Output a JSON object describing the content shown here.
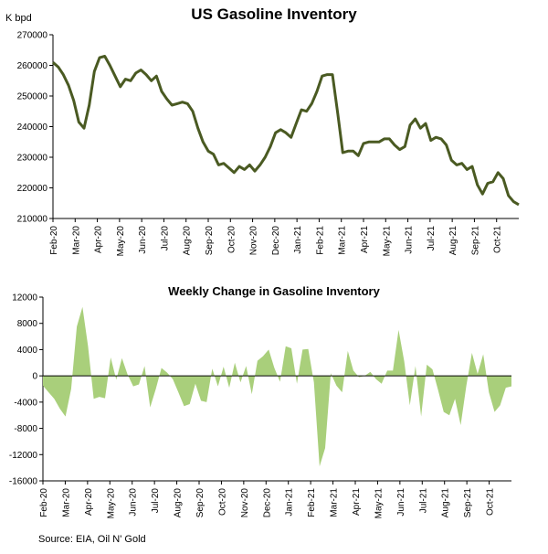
{
  "source_text": "Source: EIA, Oil N' Gold",
  "chart_data": [
    {
      "type": "line",
      "title": "US Gasoline Inventory",
      "ylabel": "K bpd",
      "xlabel": "",
      "ylim": [
        210000,
        270000
      ],
      "yticks": [
        210000,
        220000,
        230000,
        240000,
        250000,
        260000,
        270000
      ],
      "months": [
        "Feb-20",
        "Mar-20",
        "Apr-20",
        "May-20",
        "Jun-20",
        "Jul-20",
        "Aug-20",
        "Sep-20",
        "Oct-20",
        "Nov-20",
        "Dec-20",
        "Jan-21",
        "Feb-21",
        "Mar-21",
        "Apr-21",
        "May-21",
        "Jun-21",
        "Jul-21",
        "Aug-21",
        "Sep-21",
        "Oct-21"
      ],
      "series": [
        {
          "name": "US Gasoline Inventory",
          "color": "#4a5a22",
          "values": [
            261000,
            259500,
            257000,
            253500,
            248500,
            241500,
            239500,
            247000,
            258000,
            262500,
            263000,
            260000,
            256500,
            253000,
            255500,
            255000,
            257500,
            258500,
            257000,
            255000,
            256500,
            251500,
            249000,
            247000,
            247500,
            248000,
            247500,
            245000,
            239500,
            235000,
            232000,
            231000,
            227500,
            228000,
            226500,
            225000,
            227000,
            226000,
            227500,
            225500,
            227500,
            230000,
            233500,
            238000,
            239000,
            238000,
            236500,
            241000,
            245500,
            245000,
            247500,
            251500,
            256500,
            257000,
            257000,
            244500,
            231500,
            232000,
            232000,
            230500,
            234500,
            235000,
            235000,
            235000,
            236000,
            236000,
            234000,
            232500,
            233500,
            240500,
            242500,
            239500,
            241000,
            235500,
            236500,
            236000,
            234000,
            229000,
            227500,
            228000,
            226000,
            227000,
            221000,
            218000,
            221500,
            222000,
            225000,
            223000,
            217500,
            215500,
            214500
          ]
        }
      ]
    },
    {
      "type": "area",
      "title": "Weekly Change in Gasoline Inventory",
      "ylim": [
        -16000,
        12000
      ],
      "yticks": [
        -16000,
        -12000,
        -8000,
        -4000,
        0,
        4000,
        8000,
        12000
      ],
      "months": [
        "Feb-20",
        "Mar-20",
        "Apr-20",
        "May-20",
        "Jun-20",
        "Jul-20",
        "Aug-20",
        "Sep-20",
        "Oct-20",
        "Nov-20",
        "Dec-20",
        "Jan-21",
        "Feb-21",
        "Mar-21",
        "Apr-21",
        "May-21",
        "Jun-21",
        "Jul-21",
        "Aug-21",
        "Sep-21",
        "Oct-21"
      ],
      "series": [
        {
          "name": "Weekly Change",
          "color": "#a9cf7b",
          "values": [
            -1500,
            -2500,
            -3500,
            -5000,
            -6200,
            -2000,
            7500,
            10500,
            4500,
            -3500,
            -3200,
            -3400,
            2800,
            -600,
            2700,
            200,
            -1600,
            -1300,
            1500,
            -4800,
            -2000,
            1200,
            500,
            -500,
            -2500,
            -4600,
            -4300,
            -1200,
            -3800,
            -4000,
            1100,
            -1600,
            1400,
            -1800,
            2000,
            -1000,
            1500,
            -2800,
            2300,
            3000,
            4000,
            1200,
            -900,
            4500,
            4200,
            -1200,
            4000,
            4100,
            -1000,
            -13800,
            -11000,
            400,
            -1500,
            -2500,
            3800,
            800,
            -200,
            0,
            600,
            -500,
            -1200,
            800,
            800,
            7000,
            2200,
            -4500,
            1500,
            -6200,
            1700,
            1000,
            -2200,
            -5500,
            -6000,
            -3500,
            -7500,
            -1500,
            3500,
            300,
            3300,
            -2500,
            -5500,
            -4500,
            -1800,
            -1600
          ]
        }
      ]
    }
  ]
}
